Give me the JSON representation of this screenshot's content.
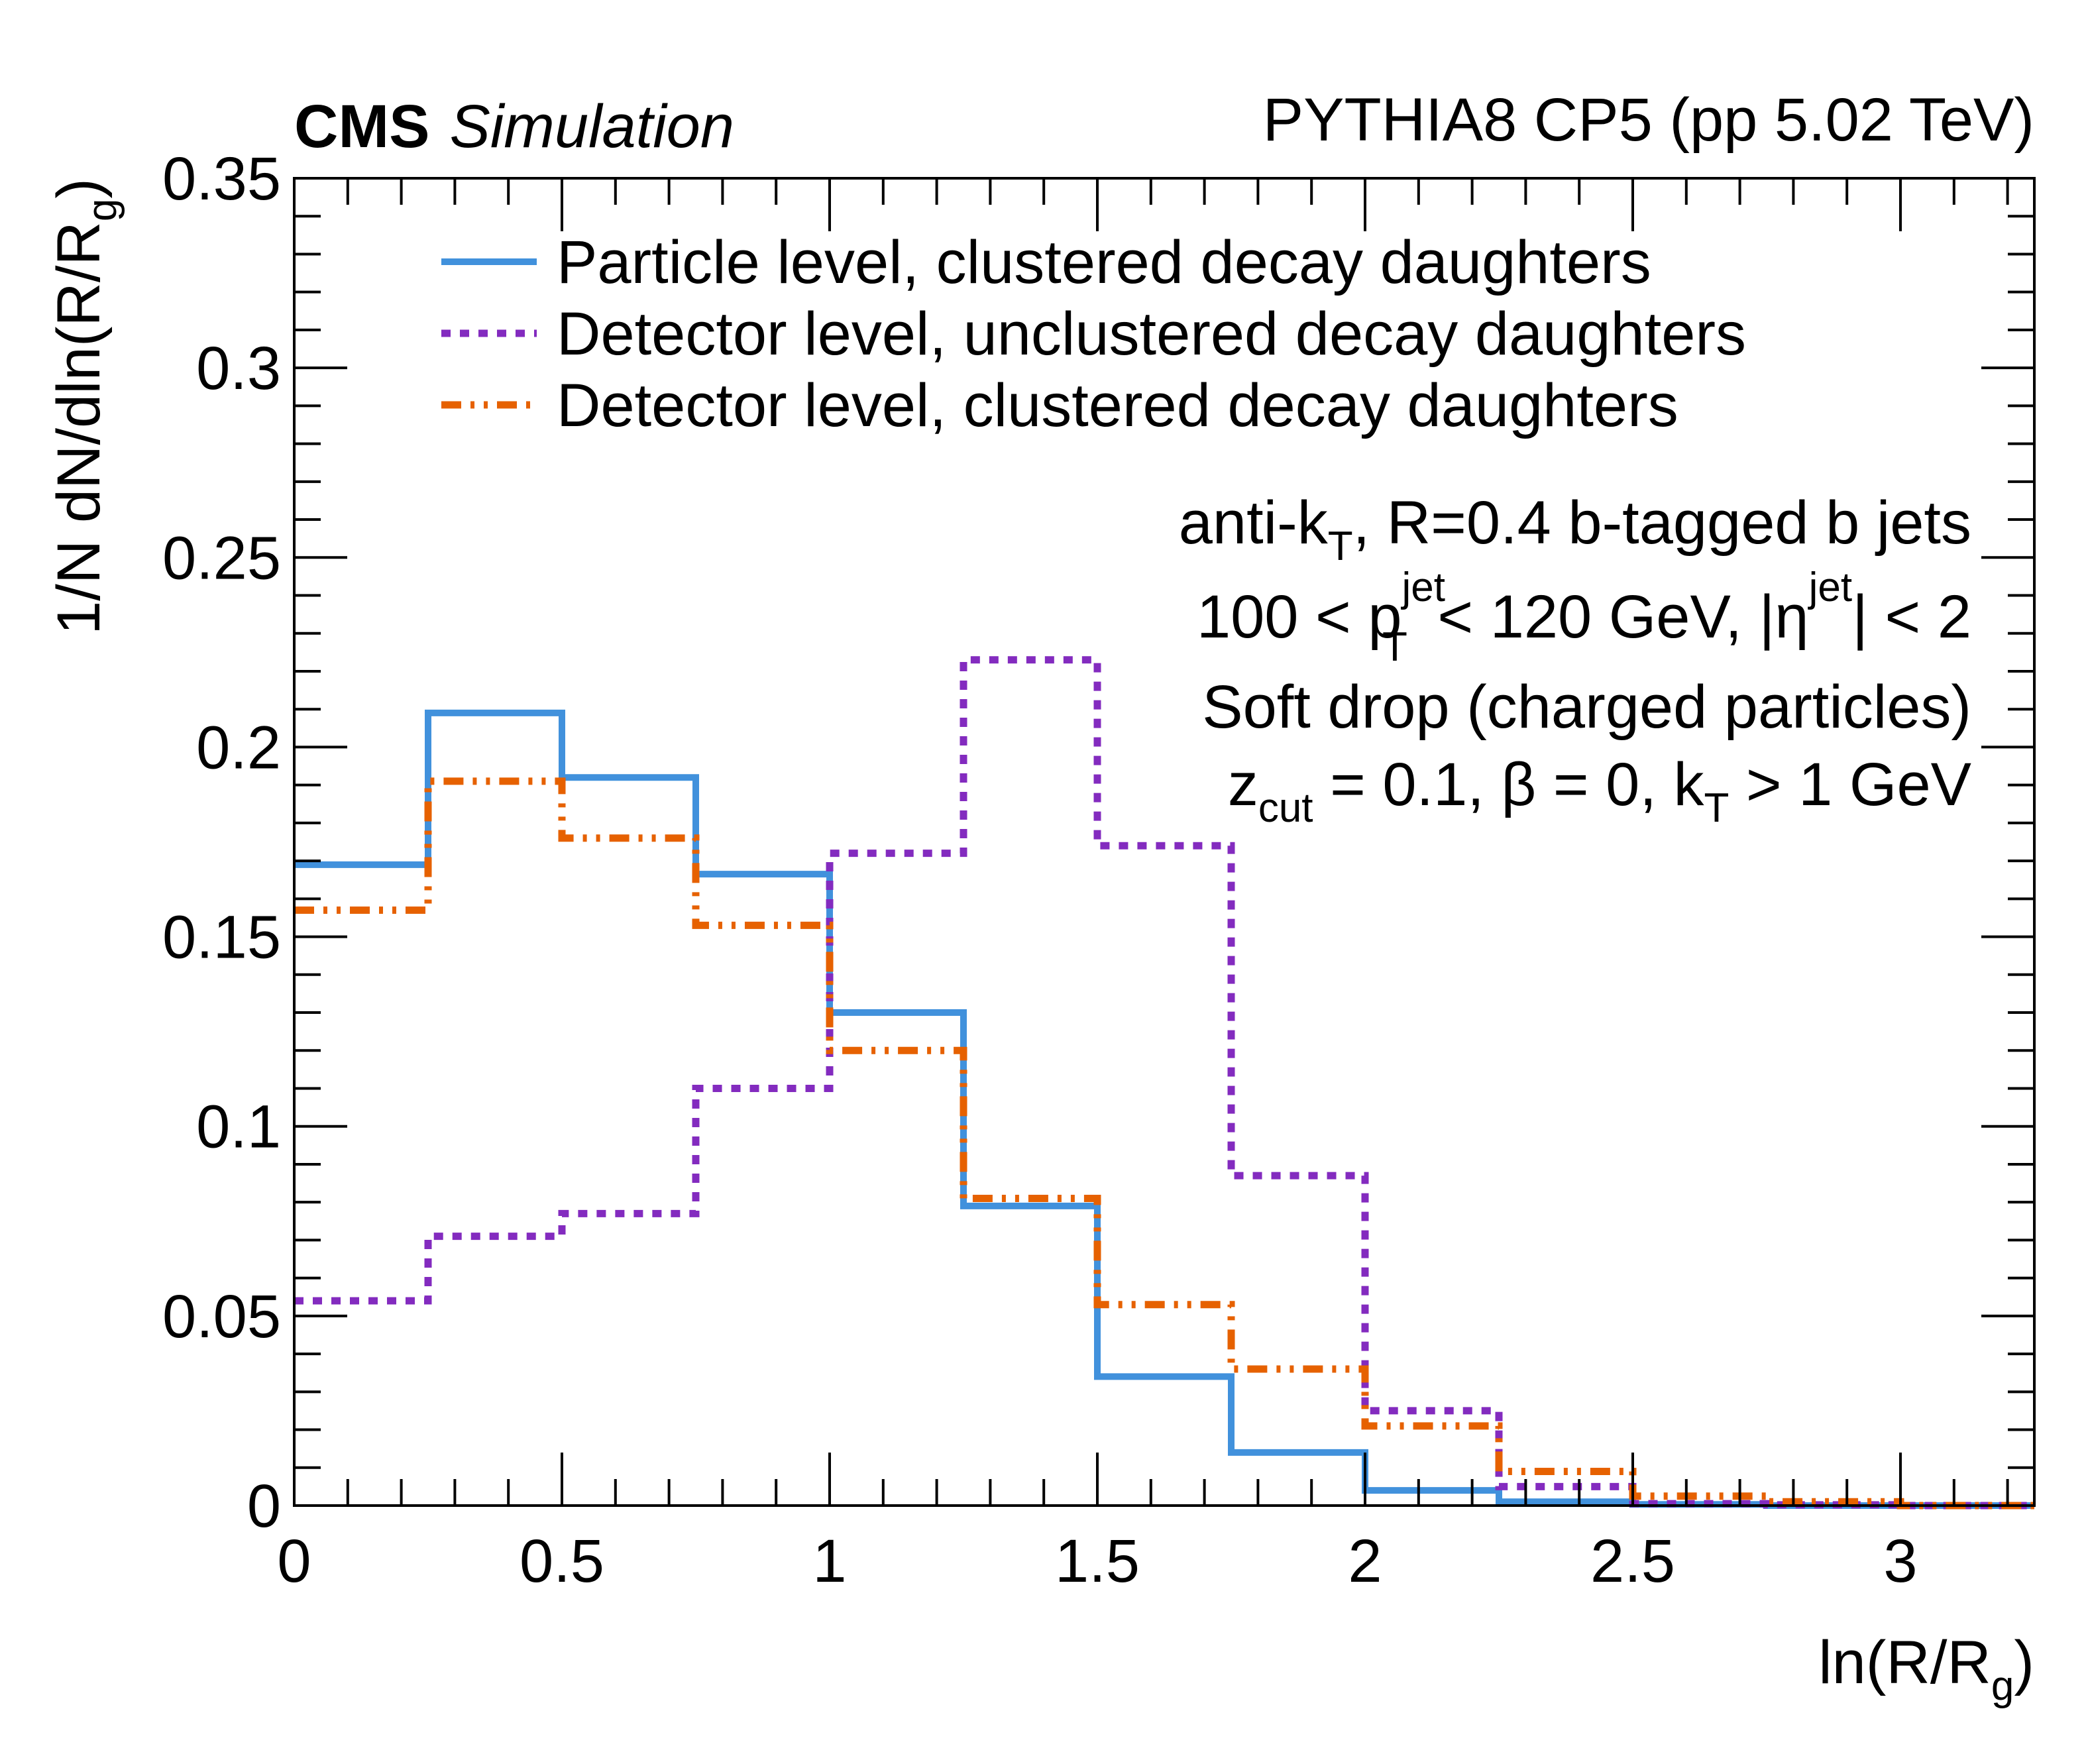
{
  "header": {
    "experiment": "CMS",
    "status": "Simulation",
    "generator": "PYTHIA8 CP5 (pp 5.02 TeV)"
  },
  "annotations": {
    "line1_a": "anti-k",
    "line1_sub": "T",
    "line1_b": ", R=0.4 b-tagged b jets",
    "line2_a": "100 < p",
    "line2_sup": "jet",
    "line2_sub": "T",
    "line2_b": " < 120 GeV, |η",
    "line2_sup2": "jet",
    "line2_c": "| < 2",
    "line3": "Soft drop (charged particles)",
    "line4_a": "z",
    "line4_sub": "cut",
    "line4_b": " = 0.1, β = 0, k",
    "line4_sub2": "T",
    "line4_c": " > 1 GeV"
  },
  "chart_data": {
    "type": "line",
    "style": "step-histogram",
    "xlabel": "ln(R/R_g)",
    "xlabel_main": "ln(R/R",
    "xlabel_sub": "g",
    "xlabel_end": ")",
    "ylabel_main": "1/N dN/dln(R/R",
    "ylabel_sub": "g",
    "ylabel_end": ")",
    "xlim": [
      0,
      3.25
    ],
    "ylim": [
      0,
      0.35
    ],
    "xticks": [
      0,
      0.5,
      1,
      1.5,
      2,
      2.5,
      3
    ],
    "xtick_labels": [
      "0",
      "0.5",
      "1",
      "1.5",
      "2",
      "2.5",
      "3"
    ],
    "yticks": [
      0,
      0.05,
      0.1,
      0.15,
      0.2,
      0.25,
      0.3,
      0.35
    ],
    "ytick_labels": [
      "0",
      "0.05",
      "0.1",
      "0.15",
      "0.2",
      "0.25",
      "0.3",
      "0.35"
    ],
    "bin_edges": [
      0,
      0.25,
      0.5,
      0.75,
      1,
      1.25,
      1.5,
      1.75,
      2,
      2.25,
      2.5,
      2.75,
      3,
      3.25
    ],
    "legend_position": "top",
    "series": [
      {
        "name": "Particle level, clustered decay daughters",
        "color": "#4191dc",
        "dash": "solid",
        "values": [
          0.169,
          0.209,
          0.192,
          0.1665,
          0.13,
          0.079,
          0.034,
          0.014,
          0.004,
          0.001,
          0.0003,
          0,
          0
        ]
      },
      {
        "name": "Detector level, unclustered decay daughters",
        "color": "#832bbf",
        "dash": "dotted",
        "values": [
          0.054,
          0.071,
          0.077,
          0.11,
          0.172,
          0.223,
          0.174,
          0.087,
          0.025,
          0.005,
          0.0005,
          0.0002,
          0
        ]
      },
      {
        "name": "Detector level, clustered decay daughters",
        "color": "#e66100",
        "dash": "dashdot",
        "values": [
          0.157,
          0.191,
          0.176,
          0.153,
          0.12,
          0.081,
          0.053,
          0.036,
          0.021,
          0.009,
          0.0025,
          0.001,
          0
        ]
      }
    ]
  }
}
